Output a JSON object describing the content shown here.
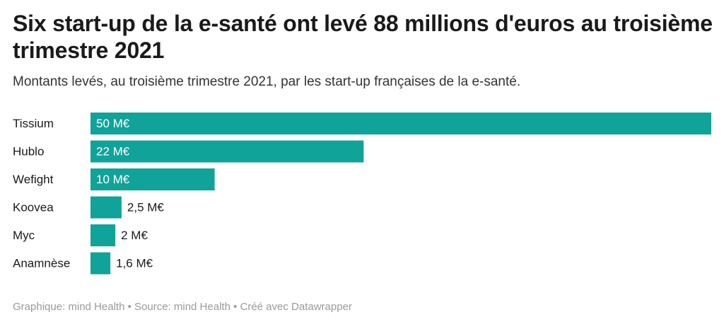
{
  "header": {
    "title": "Six start-up de la e-santé ont levé 88 millions d'euros au troisième trimestre 2021",
    "subtitle": "Montants levés, au troisième trimestre 2021, par les start-up françaises de la e-santé."
  },
  "footer": {
    "credit": "Graphique: mind Health • Source: mind Health • Créé avec Datawrapper"
  },
  "chart_data": {
    "type": "bar",
    "orientation": "horizontal",
    "title": "Six start-up de la e-santé ont levé 88 millions d'euros au troisième trimestre 2021",
    "subtitle": "Montants levés, au troisième trimestre 2021, par les start-up françaises de la e-santé.",
    "categories": [
      "Tissium",
      "Hublo",
      "Wefight",
      "Koovea",
      "Myc",
      "Anamnèse"
    ],
    "values": [
      50,
      22,
      10,
      2.5,
      2,
      1.6
    ],
    "value_labels": [
      "50 M€",
      "22 M€",
      "10 M€",
      "2,5 M€",
      "2 M€",
      "1,6 M€"
    ],
    "xlim": [
      0,
      50
    ],
    "grid": false,
    "legend": "none",
    "bar_color": "#0fa39a"
  }
}
